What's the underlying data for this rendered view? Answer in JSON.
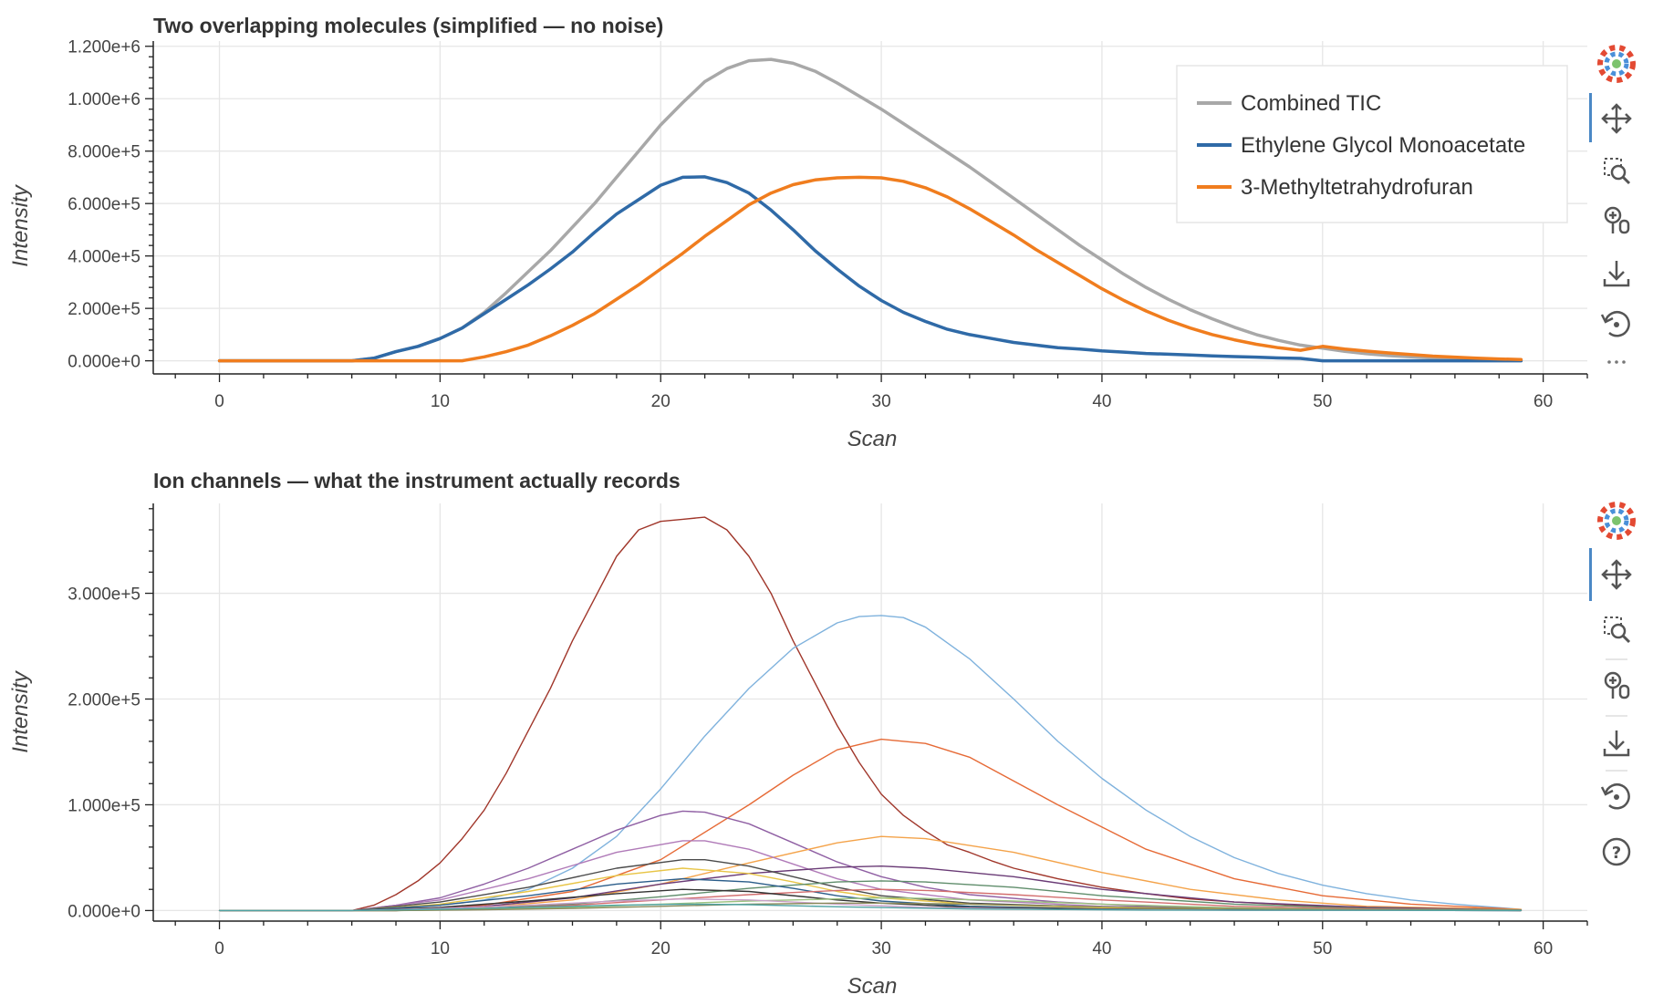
{
  "chart_data": [
    {
      "type": "line",
      "title": "Two overlapping molecules (simplified — no noise)",
      "xlabel": "Scan",
      "ylabel": "Intensity",
      "xlim": [
        -3,
        62
      ],
      "ylim": [
        -50000,
        1220000
      ],
      "xticks": [
        0,
        10,
        20,
        30,
        40,
        50,
        60
      ],
      "yticks": [
        0,
        200000,
        400000,
        600000,
        800000,
        1000000,
        1200000
      ],
      "ytick_labels": [
        "0.000e+0",
        "2.000e+5",
        "4.000e+5",
        "6.000e+5",
        "8.000e+5",
        "1.000e+6",
        "1.200e+6"
      ],
      "grid": true,
      "legend": "top-right",
      "series": [
        {
          "name": "Combined TIC",
          "color": "#a8a8a8",
          "x": [
            0,
            2,
            4,
            6,
            7,
            8,
            9,
            10,
            11,
            12,
            13,
            14,
            15,
            16,
            17,
            18,
            19,
            20,
            21,
            22,
            23,
            24,
            25,
            26,
            27,
            28,
            29,
            30,
            31,
            32,
            33,
            34,
            35,
            36,
            37,
            38,
            39,
            40,
            41,
            42,
            43,
            44,
            45,
            46,
            47,
            48,
            49,
            50,
            51,
            52,
            53,
            54,
            55,
            56,
            57,
            58,
            59
          ],
          "y": [
            0,
            0,
            0,
            0,
            10000,
            35000,
            55000,
            85000,
            125000,
            185000,
            260000,
            340000,
            420000,
            510000,
            600000,
            700000,
            800000,
            900000,
            985000,
            1065000,
            1115000,
            1145000,
            1150000,
            1135000,
            1105000,
            1060000,
            1010000,
            960000,
            905000,
            850000,
            795000,
            740000,
            680000,
            620000,
            560000,
            500000,
            440000,
            385000,
            330000,
            280000,
            235000,
            195000,
            160000,
            128000,
            100000,
            78000,
            60000,
            48000,
            36000,
            27000,
            20000,
            15000,
            11000,
            8000,
            6000,
            4000,
            3000
          ]
        },
        {
          "name": "Ethylene Glycol Monoacetate",
          "color": "#2f6aa7",
          "x": [
            0,
            2,
            4,
            6,
            7,
            8,
            9,
            10,
            11,
            12,
            13,
            14,
            15,
            16,
            17,
            18,
            19,
            20,
            21,
            22,
            23,
            24,
            25,
            26,
            27,
            28,
            29,
            30,
            31,
            32,
            33,
            34,
            35,
            36,
            37,
            38,
            39,
            40,
            41,
            42,
            43,
            44,
            45,
            46,
            47,
            48,
            49,
            50,
            51,
            52,
            53,
            54,
            55,
            56,
            57,
            58,
            59
          ],
          "y": [
            0,
            0,
            0,
            0,
            10000,
            35000,
            55000,
            85000,
            125000,
            180000,
            235000,
            290000,
            350000,
            415000,
            490000,
            560000,
            615000,
            670000,
            700000,
            702000,
            680000,
            640000,
            575000,
            500000,
            420000,
            350000,
            285000,
            230000,
            185000,
            150000,
            120000,
            100000,
            85000,
            70000,
            60000,
            50000,
            45000,
            38000,
            33000,
            28000,
            25000,
            22000,
            19000,
            16000,
            14000,
            11000,
            9000,
            0,
            0,
            0,
            0,
            0,
            0,
            0,
            0,
            0,
            0
          ]
        },
        {
          "name": "3-Methyltetrahydrofuran",
          "color": "#f07d1e",
          "x": [
            0,
            2,
            4,
            6,
            8,
            10,
            11,
            12,
            13,
            14,
            15,
            16,
            17,
            18,
            19,
            20,
            21,
            22,
            23,
            24,
            25,
            26,
            27,
            28,
            29,
            30,
            31,
            32,
            33,
            34,
            35,
            36,
            37,
            38,
            39,
            40,
            41,
            42,
            43,
            44,
            45,
            46,
            47,
            48,
            49,
            50,
            51,
            52,
            53,
            54,
            55,
            56,
            57,
            58,
            59
          ],
          "y": [
            0,
            0,
            0,
            0,
            0,
            0,
            0,
            15000,
            35000,
            60000,
            95000,
            135000,
            180000,
            235000,
            290000,
            350000,
            410000,
            475000,
            535000,
            595000,
            640000,
            672000,
            690000,
            698000,
            700000,
            698000,
            685000,
            660000,
            625000,
            580000,
            530000,
            480000,
            425000,
            375000,
            325000,
            275000,
            230000,
            190000,
            155000,
            125000,
            100000,
            80000,
            63000,
            50000,
            40000,
            55000,
            45000,
            37000,
            30000,
            24000,
            18000,
            14000,
            10000,
            7000,
            5000
          ]
        }
      ]
    },
    {
      "type": "line",
      "title": "Ion channels — what the instrument actually records",
      "xlabel": "Scan",
      "ylabel": "Intensity",
      "xlim": [
        -3,
        62
      ],
      "ylim": [
        -10000,
        385000
      ],
      "xticks": [
        0,
        10,
        20,
        30,
        40,
        50,
        60
      ],
      "yticks": [
        0,
        100000,
        200000,
        300000
      ],
      "ytick_labels": [
        "0.000e+0",
        "1.000e+5",
        "2.000e+5",
        "3.000e+5"
      ],
      "grid": true,
      "series": [
        {
          "color": "#a0362a",
          "x": [
            0,
            2,
            4,
            6,
            7,
            8,
            9,
            10,
            11,
            12,
            13,
            14,
            15,
            16,
            17,
            18,
            19,
            20,
            21,
            22,
            23,
            24,
            25,
            26,
            27,
            28,
            29,
            30,
            31,
            32,
            33,
            34,
            35,
            36,
            38,
            40,
            42,
            44,
            46,
            48,
            50,
            52,
            54,
            56,
            59
          ],
          "y": [
            0,
            0,
            0,
            0,
            5000,
            15000,
            28000,
            45000,
            68000,
            95000,
            130000,
            170000,
            210000,
            255000,
            295000,
            335000,
            360000,
            368000,
            370000,
            372000,
            360000,
            335000,
            300000,
            255000,
            215000,
            175000,
            140000,
            110000,
            90000,
            75000,
            62000,
            55000,
            47000,
            40000,
            30000,
            22000,
            16000,
            11000,
            8000,
            6000,
            4000,
            3000,
            2000,
            1000,
            0
          ]
        },
        {
          "color": "#7fb2dd",
          "x": [
            0,
            6,
            8,
            10,
            12,
            14,
            16,
            18,
            20,
            22,
            24,
            26,
            28,
            29,
            30,
            31,
            32,
            34,
            36,
            38,
            40,
            42,
            44,
            46,
            48,
            50,
            52,
            54,
            56,
            59
          ],
          "y": [
            0,
            0,
            2000,
            5000,
            10000,
            20000,
            40000,
            70000,
            115000,
            165000,
            210000,
            248000,
            272000,
            278000,
            279000,
            277000,
            268000,
            238000,
            200000,
            160000,
            125000,
            95000,
            70000,
            50000,
            35000,
            24000,
            16000,
            10000,
            6000,
            1000
          ]
        },
        {
          "color": "#e66a36",
          "x": [
            0,
            8,
            12,
            16,
            20,
            24,
            26,
            28,
            30,
            32,
            34,
            38,
            42,
            46,
            50,
            54,
            59
          ],
          "y": [
            0,
            0,
            5000,
            18000,
            48000,
            100000,
            128000,
            152000,
            162000,
            158000,
            145000,
            100000,
            58000,
            30000,
            14000,
            6000,
            1000
          ]
        },
        {
          "color": "#8f5fa3",
          "x": [
            0,
            6,
            8,
            10,
            12,
            14,
            16,
            18,
            20,
            21,
            22,
            24,
            26,
            28,
            30,
            32,
            34,
            38,
            42,
            46,
            50,
            59
          ],
          "y": [
            0,
            0,
            5000,
            12000,
            25000,
            40000,
            58000,
            76000,
            90000,
            94000,
            93000,
            82000,
            64000,
            46000,
            32000,
            22000,
            15000,
            8000,
            4000,
            2000,
            1000,
            0
          ]
        },
        {
          "color": "#f4a34a",
          "x": [
            0,
            8,
            12,
            16,
            20,
            24,
            28,
            30,
            32,
            36,
            40,
            44,
            48,
            52,
            59
          ],
          "y": [
            0,
            0,
            3000,
            10000,
            25000,
            45000,
            64000,
            70000,
            68000,
            55000,
            36000,
            20000,
            10000,
            4000,
            1000
          ]
        },
        {
          "color": "#b07ab8",
          "x": [
            0,
            6,
            10,
            14,
            18,
            21,
            22,
            24,
            26,
            28,
            30,
            34,
            40,
            46,
            52,
            59
          ],
          "y": [
            0,
            0,
            10000,
            30000,
            55000,
            66000,
            66000,
            58000,
            44000,
            30000,
            20000,
            10000,
            4000,
            1500,
            500,
            0
          ]
        },
        {
          "color": "#6a3b76",
          "x": [
            0,
            8,
            12,
            16,
            20,
            24,
            28,
            30,
            32,
            36,
            40,
            46,
            52,
            59
          ],
          "y": [
            0,
            0,
            4000,
            12000,
            25000,
            35000,
            41000,
            42000,
            40000,
            32000,
            20000,
            8000,
            3000,
            500
          ]
        },
        {
          "color": "#4b4b4b",
          "x": [
            0,
            6,
            10,
            14,
            18,
            21,
            22,
            24,
            26,
            28,
            30,
            34,
            40,
            46,
            59
          ],
          "y": [
            0,
            0,
            8000,
            22000,
            40000,
            48000,
            48000,
            42000,
            32000,
            22000,
            14000,
            7000,
            3000,
            1000,
            0
          ]
        },
        {
          "color": "#e8c547",
          "x": [
            0,
            6,
            10,
            14,
            18,
            21,
            24,
            26,
            28,
            30,
            34,
            40,
            46,
            59
          ],
          "y": [
            0,
            0,
            6000,
            18000,
            33000,
            40000,
            35000,
            27000,
            18000,
            12000,
            6000,
            2500,
            800,
            0
          ]
        },
        {
          "color": "#5f8d6b",
          "x": [
            0,
            8,
            12,
            16,
            20,
            24,
            28,
            30,
            32,
            36,
            40,
            46,
            52,
            59
          ],
          "y": [
            0,
            0,
            2000,
            6000,
            13000,
            21000,
            27000,
            28000,
            27000,
            22000,
            14000,
            6000,
            2000,
            500
          ]
        },
        {
          "color": "#2b5d8a",
          "x": [
            0,
            6,
            10,
            14,
            18,
            21,
            24,
            26,
            28,
            30,
            34,
            40,
            46,
            59
          ],
          "y": [
            0,
            0,
            5000,
            14000,
            25000,
            30000,
            27000,
            21000,
            14000,
            9000,
            4000,
            1500,
            500,
            0
          ]
        },
        {
          "color": "#d36e6e",
          "x": [
            0,
            8,
            12,
            16,
            20,
            24,
            28,
            30,
            32,
            36,
            40,
            46,
            52,
            59
          ],
          "y": [
            0,
            0,
            1500,
            5000,
            10000,
            15000,
            19000,
            20000,
            19000,
            15000,
            10000,
            4000,
            1500,
            300
          ]
        },
        {
          "color": "#333333",
          "x": [
            0,
            6,
            10,
            14,
            18,
            21,
            24,
            28,
            30,
            34,
            40,
            46,
            59
          ],
          "y": [
            0,
            0,
            3000,
            9000,
            16000,
            20000,
            18000,
            10000,
            7000,
            3000,
            1200,
            400,
            0
          ]
        },
        {
          "color": "#9bc27f",
          "x": [
            0,
            8,
            12,
            16,
            20,
            24,
            28,
            30,
            32,
            36,
            40,
            46,
            52,
            59
          ],
          "y": [
            0,
            0,
            1000,
            3000,
            6000,
            9000,
            11000,
            12000,
            11500,
            9000,
            6000,
            2500,
            800,
            200
          ]
        },
        {
          "color": "#c9a0c9",
          "x": [
            0,
            6,
            10,
            14,
            18,
            21,
            24,
            28,
            32,
            38,
            46,
            59
          ],
          "y": [
            0,
            0,
            2000,
            5000,
            9000,
            11000,
            10000,
            6000,
            3000,
            1000,
            300,
            0
          ]
        },
        {
          "color": "#8a8a5a",
          "x": [
            0,
            8,
            12,
            16,
            20,
            24,
            28,
            30,
            34,
            40,
            48,
            59
          ],
          "y": [
            0,
            0,
            700,
            2000,
            4000,
            6000,
            7000,
            7000,
            6000,
            3500,
            1200,
            200
          ]
        },
        {
          "color": "#4fa3a3",
          "x": [
            0,
            6,
            10,
            14,
            18,
            21,
            24,
            28,
            34,
            42,
            59
          ],
          "y": [
            0,
            0,
            1200,
            3000,
            5000,
            6000,
            5500,
            3500,
            1500,
            400,
            0
          ]
        }
      ]
    }
  ]
}
